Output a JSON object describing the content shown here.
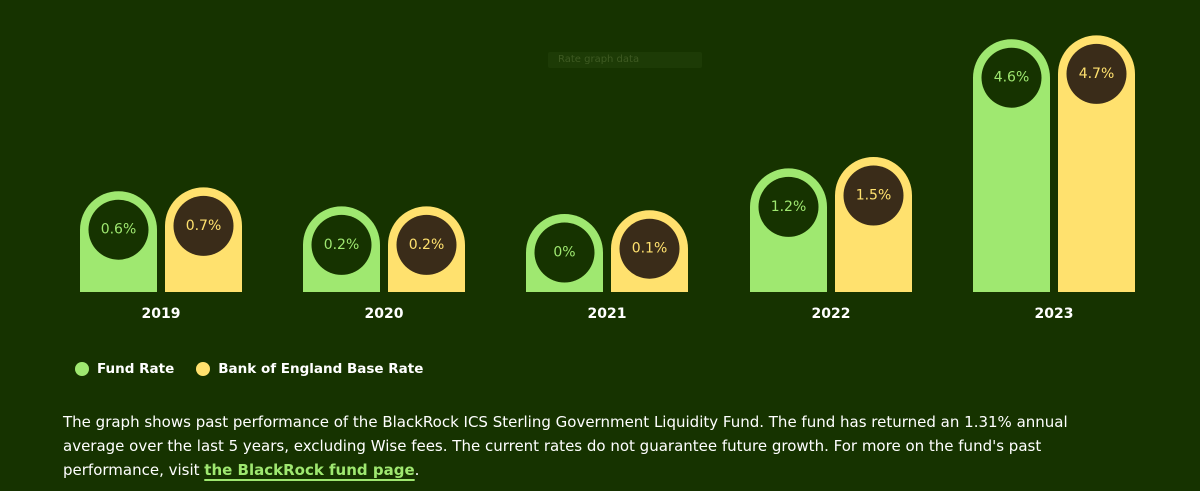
{
  "colors": {
    "background": "#163300",
    "fund": "#9fe870",
    "boe": "#ffe16e",
    "disc_fund": "#163300",
    "disc_boe": "#3a2c19"
  },
  "ghost_label": "Rate graph data",
  "chart_data": {
    "type": "bar",
    "categories": [
      "2019",
      "2020",
      "2021",
      "2022",
      "2023"
    ],
    "series": [
      {
        "name": "Fund Rate",
        "values": [
          0.6,
          0.2,
          0.0,
          1.2,
          4.6
        ],
        "labels": [
          "0.6%",
          "0.2%",
          "0%",
          "1.2%",
          "4.6%"
        ]
      },
      {
        "name": "Bank of England Base Rate",
        "values": [
          0.7,
          0.2,
          0.1,
          1.5,
          4.7
        ],
        "labels": [
          "0.7%",
          "0.2%",
          "0.1%",
          "1.5%",
          "4.7%"
        ]
      }
    ],
    "legend": "bottom-left",
    "grid": false
  },
  "legend": {
    "fund_label": "Fund Rate",
    "boe_label": "Bank of England Base Rate"
  },
  "caption": {
    "text": "The graph shows past performance of the BlackRock ICS Sterling Government Liquidity Fund. The fund has returned an 1.31% annual average over the last 5 years, excluding Wise fees. The current rates do not guarantee future growth. For more on the fund's past performance, visit ",
    "link": "the BlackRock fund page",
    "end": "."
  }
}
